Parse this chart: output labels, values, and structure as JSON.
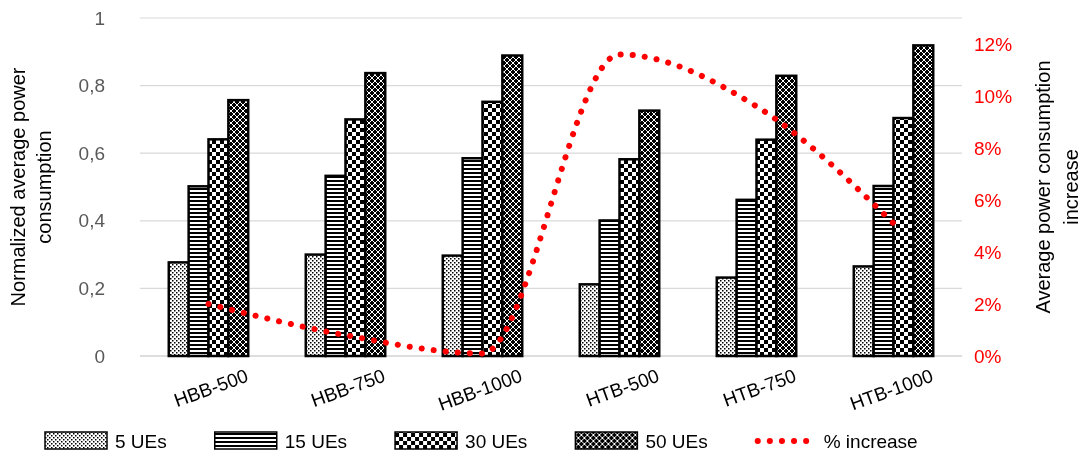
{
  "chart_data": {
    "type": "bar",
    "categories": [
      "HBB-500",
      "HBB-750",
      "HBB-1000",
      "HTB-500",
      "HTB-750",
      "HTB-1000"
    ],
    "ylabel": "Normalized average power consumption",
    "y2label": "Average power consumption increase",
    "ylim": [
      0,
      1
    ],
    "yticks": [
      0,
      {
        "value": 0.2,
        "label": "0,2"
      },
      {
        "value": 0.4,
        "label": "0,4"
      },
      {
        "value": 0.6,
        "label": "0,6"
      },
      {
        "value": 0.8,
        "label": "0,8"
      },
      1
    ],
    "y2lim": [
      0,
      13
    ],
    "y2ticks": [
      {
        "value": 0,
        "label": "0%"
      },
      {
        "value": 2,
        "label": "2%"
      },
      {
        "value": 4,
        "label": "4%"
      },
      {
        "value": 6,
        "label": "6%"
      },
      {
        "value": 8,
        "label": "8%"
      },
      {
        "value": 10,
        "label": "10%"
      },
      {
        "value": 12,
        "label": "12%"
      }
    ],
    "grid": "y",
    "legend": "bottom",
    "series": [
      {
        "name": "5 UEs",
        "color": "#000000",
        "values": [
          0.277,
          0.3,
          0.297,
          0.212,
          0.232,
          0.265
        ]
      },
      {
        "name": "15 UEs",
        "color": "#000000",
        "values": [
          0.502,
          0.533,
          0.585,
          0.401,
          0.462,
          0.503
        ]
      },
      {
        "name": "30 UEs",
        "color": "#000000",
        "values": [
          0.641,
          0.7,
          0.752,
          0.582,
          0.64,
          0.704
        ]
      },
      {
        "name": "50 UEs",
        "color": "#000000",
        "values": [
          0.757,
          0.837,
          0.889,
          0.726,
          0.829,
          0.919
        ]
      },
      {
        "name": "% increase",
        "type": "line",
        "axis": "y2",
        "color": "#ff0000",
        "line_style": "dotted",
        "marker": "none",
        "values": [
          2.0,
          0.8,
          0.1,
          11.6,
          9.6,
          5.1
        ]
      }
    ]
  }
}
